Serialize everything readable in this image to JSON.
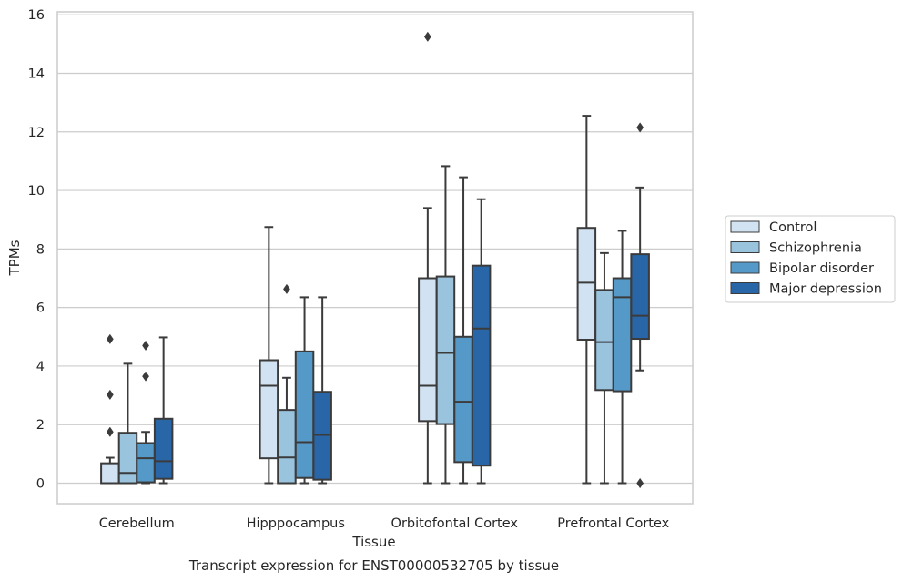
{
  "chart_data": {
    "type": "box",
    "title": "",
    "caption": "Transcript expression for ENST00000532705 by tissue",
    "xlabel": "Tissue",
    "ylabel": "TPMs",
    "ylim": [
      -0.7,
      16.1
    ],
    "yticks": [
      0,
      2,
      4,
      6,
      8,
      10,
      12,
      14,
      16
    ],
    "grid": "horizontal",
    "legend_position": "right-outside",
    "categories": [
      "Cerebellum",
      "Hipppocampus",
      "Orbitofontal Cortex",
      "Prefrontal Cortex"
    ],
    "series": [
      {
        "name": "Control",
        "color": "#d1e2f2",
        "boxes": [
          {
            "whislo": 0.0,
            "q1": 0.0,
            "med": 0.0,
            "q3": 0.68,
            "whishi": 0.87,
            "fliers": [
              1.75,
              3.02,
              4.92
            ]
          },
          {
            "whislo": 0.0,
            "q1": 0.85,
            "med": 3.33,
            "q3": 4.2,
            "whishi": 8.75,
            "fliers": []
          },
          {
            "whislo": 0.0,
            "q1": 2.12,
            "med": 3.33,
            "q3": 7.0,
            "whishi": 9.4,
            "fliers": [
              15.25
            ]
          },
          {
            "whislo": 0.0,
            "q1": 4.9,
            "med": 6.85,
            "q3": 8.72,
            "whishi": 12.55,
            "fliers": []
          }
        ]
      },
      {
        "name": "Schizophrenia",
        "color": "#9ac4de",
        "boxes": [
          {
            "whislo": 0.0,
            "q1": 0.0,
            "med": 0.35,
            "q3": 1.72,
            "whishi": 4.08,
            "fliers": []
          },
          {
            "whislo": 0.0,
            "q1": 0.0,
            "med": 0.88,
            "q3": 2.5,
            "whishi": 3.6,
            "fliers": [
              6.63
            ]
          },
          {
            "whislo": 0.0,
            "q1": 2.02,
            "med": 4.45,
            "q3": 7.06,
            "whishi": 10.83,
            "fliers": []
          },
          {
            "whislo": 0.0,
            "q1": 3.18,
            "med": 4.82,
            "q3": 6.6,
            "whishi": 7.86,
            "fliers": []
          }
        ]
      },
      {
        "name": "Bipolar disorder",
        "color": "#5599c8",
        "boxes": [
          {
            "whislo": 0.0,
            "q1": 0.03,
            "med": 0.85,
            "q3": 1.37,
            "whishi": 1.75,
            "fliers": [
              3.65,
              4.7
            ]
          },
          {
            "whislo": 0.0,
            "q1": 0.18,
            "med": 1.4,
            "q3": 4.5,
            "whishi": 6.35,
            "fliers": []
          },
          {
            "whislo": 0.0,
            "q1": 0.72,
            "med": 2.78,
            "q3": 5.0,
            "whishi": 10.45,
            "fliers": []
          },
          {
            "whislo": 0.0,
            "q1": 3.14,
            "med": 6.35,
            "q3": 7.0,
            "whishi": 8.62,
            "fliers": []
          }
        ]
      },
      {
        "name": "Major depression",
        "color": "#2866a8",
        "boxes": [
          {
            "whislo": 0.0,
            "q1": 0.15,
            "med": 0.75,
            "q3": 2.2,
            "whishi": 4.98,
            "fliers": []
          },
          {
            "whislo": 0.0,
            "q1": 0.12,
            "med": 1.65,
            "q3": 3.12,
            "whishi": 6.35,
            "fliers": []
          },
          {
            "whislo": 0.0,
            "q1": 0.6,
            "med": 5.28,
            "q3": 7.43,
            "whishi": 9.7,
            "fliers": []
          },
          {
            "whislo": 3.85,
            "q1": 4.93,
            "med": 5.72,
            "q3": 7.82,
            "whishi": 10.1,
            "fliers": [
              0.0,
              12.15
            ]
          }
        ]
      }
    ]
  }
}
